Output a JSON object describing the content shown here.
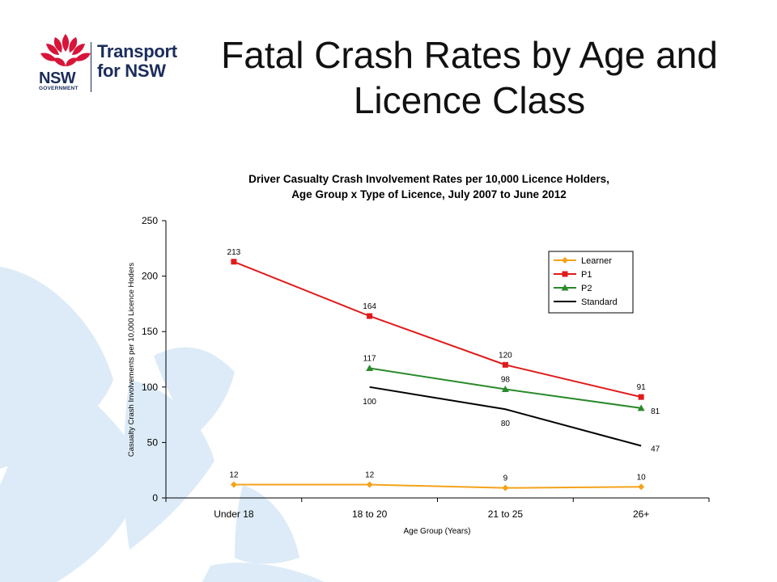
{
  "slide": {
    "title": "Fatal Crash Rates by Age and Licence Class"
  },
  "logo": {
    "line1": "Transport",
    "line2": "for NSW",
    "nsw": "NSW",
    "government": "GOVERNMENT"
  },
  "colors": {
    "background_shape": "#dcebf7",
    "logo_red": "#d7153a",
    "logo_navy": "#1b2d5b",
    "learner": "#f4a21a",
    "p1": "#e01b1b",
    "p2": "#2a8a2a",
    "standard": "#000000"
  },
  "chart_data": {
    "type": "line",
    "title_line1": "Driver Casualty Crash Involvement Rates per 10,000 Licence Holders,",
    "title_line2": "Age Group x Type of Licence, July 2007 to June 2012",
    "xlabel": "Age Group (Years)",
    "ylabel": "Casualty Crash Involvements per 10,000 Licence Hoders",
    "categories": [
      "Under 18",
      "18 to 20",
      "21 to 25",
      "26+"
    ],
    "ylim": [
      0,
      250
    ],
    "yticks": [
      0,
      50,
      100,
      150,
      200,
      250
    ],
    "grid": false,
    "legend_position": "top-right",
    "series": [
      {
        "name": "Learner",
        "color": "#f4a21a",
        "marker": "diamond",
        "values": [
          12,
          12,
          9,
          10
        ]
      },
      {
        "name": "P1",
        "color": "#e01b1b",
        "marker": "square",
        "values": [
          213,
          164,
          120,
          91
        ]
      },
      {
        "name": "P2",
        "color": "#2a8a2a",
        "marker": "triangle",
        "values": [
          null,
          117,
          98,
          81
        ]
      },
      {
        "name": "Standard",
        "color": "#000000",
        "marker": "none",
        "values": [
          null,
          100,
          80,
          47
        ]
      }
    ]
  }
}
